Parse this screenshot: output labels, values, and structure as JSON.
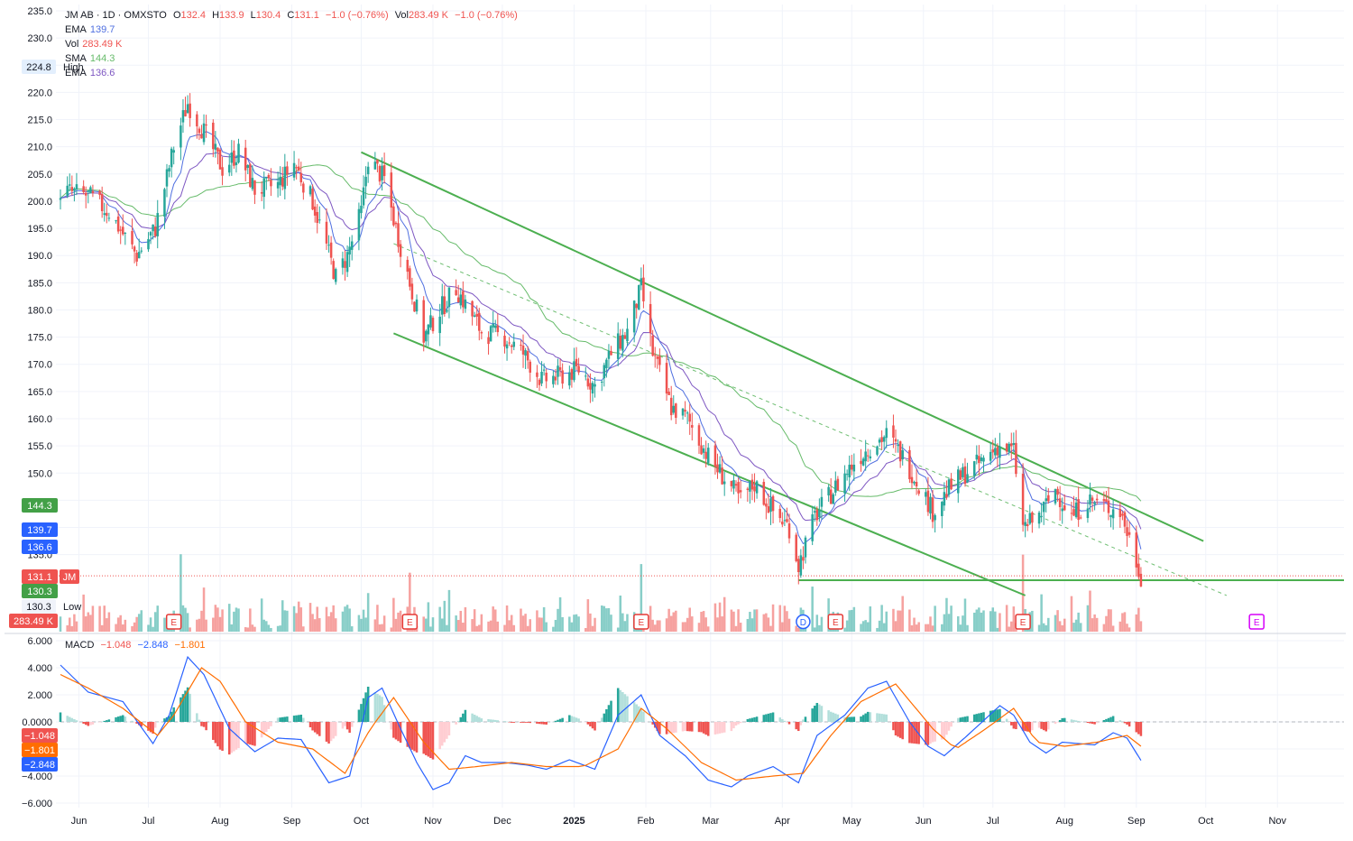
{
  "header": {
    "symbol": "JM AB · 1D · OMXSTO",
    "o_label": "O",
    "o_value": "132.4",
    "h_label": "H",
    "h_value": "133.9",
    "l_label": "L",
    "l_value": "130.4",
    "c_label": "C",
    "c_value": "131.1",
    "change": "−1.0 (−0.76%)",
    "vol_label": "Vol",
    "vol_value": "283.49 K",
    "vol_change": "−1.0 (−0.76%)"
  },
  "indicators": {
    "ema1_label": "EMA",
    "ema1_value": "139.7",
    "vol_label": "Vol",
    "vol_value": "283.49 K",
    "sma_label": "SMA",
    "sma_value": "144.3",
    "ema2_label": "EMA",
    "ema2_value": "136.6",
    "high_label": "High",
    "high_value": "224.8",
    "low_label": "Low",
    "low_value": "130.3"
  },
  "macd_legend": {
    "label": "MACD",
    "v1": "−1.048",
    "v2": "−2.848",
    "v3": "−1.801"
  },
  "badges": {
    "sma": "144.3",
    "ema1": "139.7",
    "ema2": "136.6",
    "price": "131.1",
    "ticker": "JM",
    "low": "130.3",
    "volume": "283.49 K",
    "macd_hist": "−1.048",
    "macd_signal": "−1.801",
    "macd_line": "−2.848"
  },
  "colors": {
    "up": "#26a69a",
    "down": "#ef5350",
    "channel": "#4caf50",
    "sma": "#66bb6a",
    "ema_fast": "#4f6fe0",
    "ema_slow": "#7e57c2",
    "macd": "#2962ff",
    "signal": "#ff6d00",
    "grid": "#f0f3fa",
    "earnings": "#e53935",
    "dividend": "#2962ff",
    "future_earnings": "#d500f9"
  },
  "chart_data": [
    {
      "type": "candlestick",
      "title": "JM AB · 1D · OMXSTO",
      "x": [
        "Jun",
        "Jul",
        "Aug",
        "Sep",
        "Oct",
        "Nov",
        "Dec",
        "2025",
        "Feb",
        "Mar",
        "Apr",
        "May",
        "Jun",
        "Jul",
        "Aug",
        "Sep",
        "Oct",
        "Nov"
      ],
      "y_ticks": [
        135,
        140,
        145,
        150,
        155,
        160,
        165,
        170,
        175,
        180,
        185,
        190,
        195,
        200,
        205,
        210,
        215,
        220,
        225,
        230,
        235
      ],
      "y_tick_labels": [
        "135.0",
        "",
        "",
        "150.0",
        "155.0",
        "160.0",
        "165.0",
        "170.0",
        "175.0",
        "180.0",
        "185.0",
        "190.0",
        "195.0",
        "200.0",
        "205.0",
        "210.0",
        "215.0",
        "220.0",
        "",
        "230.0",
        "235.0"
      ],
      "ylim": [
        127.5,
        235
      ],
      "grid": true,
      "scale": "linear",
      "price_path": [
        [
          "2024-05-24",
          202
        ],
        [
          "2024-06-05",
          201
        ],
        [
          "2024-06-14",
          198
        ],
        [
          "2024-06-26",
          190
        ],
        [
          "2024-07-04",
          195
        ],
        [
          "2024-07-12",
          210
        ],
        [
          "2024-07-18",
          218
        ],
        [
          "2024-07-26",
          212
        ],
        [
          "2024-08-02",
          206
        ],
        [
          "2024-08-09",
          209
        ],
        [
          "2024-08-16",
          202
        ],
        [
          "2024-08-26",
          203
        ],
        [
          "2024-09-02",
          207
        ],
        [
          "2024-09-10",
          200
        ],
        [
          "2024-09-20",
          186
        ],
        [
          "2024-09-25",
          190
        ],
        [
          "2024-10-01",
          198
        ],
        [
          "2024-10-04",
          208
        ],
        [
          "2024-10-11",
          204
        ],
        [
          "2024-10-16",
          195
        ],
        [
          "2024-10-22",
          185
        ],
        [
          "2024-10-28",
          175
        ],
        [
          "2024-11-04",
          180
        ],
        [
          "2024-11-11",
          184
        ],
        [
          "2024-11-15",
          181
        ],
        [
          "2024-11-22",
          176
        ],
        [
          "2024-12-02",
          175
        ],
        [
          "2024-12-10",
          172
        ],
        [
          "2024-12-18",
          167
        ],
        [
          "2024-12-27",
          168
        ],
        [
          "2025-01-03",
          169
        ],
        [
          "2025-01-10",
          166
        ],
        [
          "2025-01-17",
          172
        ],
        [
          "2025-01-24",
          176
        ],
        [
          "2025-01-30",
          184
        ],
        [
          "2025-02-04",
          172
        ],
        [
          "2025-02-12",
          162
        ],
        [
          "2025-02-19",
          160
        ],
        [
          "2025-02-28",
          153
        ],
        [
          "2025-03-07",
          149
        ],
        [
          "2025-03-14",
          145
        ],
        [
          "2025-03-20",
          148
        ],
        [
          "2025-03-28",
          143
        ],
        [
          "2025-04-04",
          140
        ],
        [
          "2025-04-08",
          133
        ],
        [
          "2025-04-15",
          142
        ],
        [
          "2025-04-25",
          148
        ],
        [
          "2025-05-02",
          152
        ],
        [
          "2025-05-09",
          155
        ],
        [
          "2025-05-16",
          157
        ],
        [
          "2025-05-23",
          153
        ],
        [
          "2025-05-30",
          148
        ],
        [
          "2025-06-05",
          143
        ],
        [
          "2025-06-12",
          147
        ],
        [
          "2025-06-19",
          150
        ],
        [
          "2025-06-26",
          152
        ],
        [
          "2025-07-03",
          155
        ],
        [
          "2025-07-10",
          154
        ],
        [
          "2025-07-14",
          140
        ],
        [
          "2025-07-21",
          142
        ],
        [
          "2025-07-28",
          147
        ],
        [
          "2025-08-04",
          142
        ],
        [
          "2025-08-11",
          145
        ],
        [
          "2025-08-18",
          144
        ],
        [
          "2025-08-25",
          143
        ],
        [
          "2025-08-29",
          138
        ],
        [
          "2025-09-03",
          131.1
        ]
      ],
      "channel_upper": [
        [
          "2024-10-01",
          209
        ],
        [
          "2025-09-30",
          137.5
        ]
      ],
      "channel_lower": [
        [
          "2024-10-15",
          175.7
        ],
        [
          "2025-07-15",
          127.5
        ]
      ],
      "channel_mid": [
        [
          "2024-10-15",
          192.2
        ],
        [
          "2025-10-10",
          127.5
        ]
      ],
      "support_level": 130.3,
      "last_price": 131.1,
      "sma_last": 144.3,
      "ema_fast_last": 139.7,
      "ema_slow_last": 136.6,
      "high": 224.8,
      "low": 130.3,
      "volume_last": "283.49 K",
      "volume_spikes": [
        "2024-07-15",
        "2024-10-22",
        "2025-01-30",
        "2025-07-14"
      ],
      "events": [
        {
          "date": "2024-07-12",
          "type": "E"
        },
        {
          "date": "2024-10-22",
          "type": "E"
        },
        {
          "date": "2025-01-30",
          "type": "E"
        },
        {
          "date": "2025-04-10",
          "type": "D"
        },
        {
          "date": "2025-04-24",
          "type": "E"
        },
        {
          "date": "2025-07-14",
          "type": "E"
        },
        {
          "date": "2025-10-23",
          "type": "E"
        }
      ]
    },
    {
      "type": "line",
      "title": "MACD",
      "series": [
        {
          "name": "MACD",
          "color": "#2962ff"
        },
        {
          "name": "Signal",
          "color": "#ff6d00"
        },
        {
          "name": "Histogram"
        }
      ],
      "y_ticks": [
        -6,
        -4,
        -2,
        0,
        2,
        4,
        6
      ],
      "y_tick_labels": [
        "−6.000",
        "−4.000",
        "−2.000",
        "0.0000",
        "2.000",
        "4.000",
        "6.000"
      ],
      "ylim": [
        -7,
        6
      ],
      "macd_path": [
        [
          "2024-05-24",
          4.2
        ],
        [
          "2024-06-05",
          2.2
        ],
        [
          "2024-06-20",
          1.5
        ],
        [
          "2024-07-03",
          -1.6
        ],
        [
          "2024-07-10",
          0.5
        ],
        [
          "2024-07-18",
          4.8
        ],
        [
          "2024-07-25",
          3.5
        ],
        [
          "2024-08-05",
          -0.5
        ],
        [
          "2024-08-16",
          -2.2
        ],
        [
          "2024-08-26",
          -1.2
        ],
        [
          "2024-09-05",
          -1.3
        ],
        [
          "2024-09-17",
          -4.5
        ],
        [
          "2024-09-26",
          -4.0
        ],
        [
          "2024-10-04",
          1.8
        ],
        [
          "2024-10-10",
          2.5
        ],
        [
          "2024-10-18",
          -0.5
        ],
        [
          "2024-10-25",
          -3.0
        ],
        [
          "2024-11-01",
          -5.0
        ],
        [
          "2024-11-08",
          -4.5
        ],
        [
          "2024-11-15",
          -2.5
        ],
        [
          "2024-11-22",
          -3.0
        ],
        [
          "2024-12-02",
          -3.0
        ],
        [
          "2024-12-12",
          -3.2
        ],
        [
          "2024-12-20",
          -3.5
        ],
        [
          "2024-12-30",
          -2.8
        ],
        [
          "2025-01-10",
          -3.5
        ],
        [
          "2025-01-20",
          0.5
        ],
        [
          "2025-01-30",
          2.0
        ],
        [
          "2025-02-07",
          -1.0
        ],
        [
          "2025-02-18",
          -2.5
        ],
        [
          "2025-02-28",
          -4.3
        ],
        [
          "2025-03-10",
          -4.8
        ],
        [
          "2025-03-17",
          -4.0
        ],
        [
          "2025-03-28",
          -3.3
        ],
        [
          "2025-04-08",
          -4.5
        ],
        [
          "2025-04-16",
          -1.0
        ],
        [
          "2025-04-28",
          0.5
        ],
        [
          "2025-05-08",
          2.5
        ],
        [
          "2025-05-16",
          3.0
        ],
        [
          "2025-05-26",
          0.0
        ],
        [
          "2025-06-03",
          -1.8
        ],
        [
          "2025-06-10",
          -2.5
        ],
        [
          "2025-06-20",
          -1.0
        ],
        [
          "2025-07-04",
          1.2
        ],
        [
          "2025-07-10",
          0.5
        ],
        [
          "2025-07-17",
          -1.5
        ],
        [
          "2025-07-24",
          -2.3
        ],
        [
          "2025-07-31",
          -1.5
        ],
        [
          "2025-08-07",
          -1.6
        ],
        [
          "2025-08-14",
          -1.7
        ],
        [
          "2025-08-22",
          -0.8
        ],
        [
          "2025-08-28",
          -1.2
        ],
        [
          "2025-09-03",
          -2.848
        ]
      ],
      "signal_path": [
        [
          "2024-05-24",
          3.5
        ],
        [
          "2024-06-05",
          2.5
        ],
        [
          "2024-06-20",
          1.0
        ],
        [
          "2024-07-05",
          -1.0
        ],
        [
          "2024-07-12",
          0.5
        ],
        [
          "2024-07-24",
          4.0
        ],
        [
          "2024-08-01",
          3.0
        ],
        [
          "2024-08-12",
          0.0
        ],
        [
          "2024-08-26",
          -1.5
        ],
        [
          "2024-09-10",
          -2.0
        ],
        [
          "2024-09-24",
          -3.8
        ],
        [
          "2024-10-05",
          -0.5
        ],
        [
          "2024-10-15",
          1.8
        ],
        [
          "2024-10-28",
          -1.5
        ],
        [
          "2024-11-08",
          -3.5
        ],
        [
          "2024-11-20",
          -3.3
        ],
        [
          "2024-12-05",
          -3.0
        ],
        [
          "2024-12-20",
          -3.3
        ],
        [
          "2025-01-05",
          -3.3
        ],
        [
          "2025-01-20",
          -2.0
        ],
        [
          "2025-01-30",
          1.0
        ],
        [
          "2025-02-10",
          -0.5
        ],
        [
          "2025-02-25",
          -3.0
        ],
        [
          "2025-03-12",
          -4.3
        ],
        [
          "2025-03-28",
          -4.0
        ],
        [
          "2025-04-10",
          -3.8
        ],
        [
          "2025-04-22",
          -1.0
        ],
        [
          "2025-05-05",
          1.5
        ],
        [
          "2025-05-20",
          2.8
        ],
        [
          "2025-06-05",
          -0.5
        ],
        [
          "2025-06-15",
          -2.0
        ],
        [
          "2025-06-28",
          -0.5
        ],
        [
          "2025-07-10",
          1.0
        ],
        [
          "2025-07-20",
          -1.5
        ],
        [
          "2025-08-01",
          -1.8
        ],
        [
          "2025-08-15",
          -1.5
        ],
        [
          "2025-08-28",
          -1.0
        ],
        [
          "2025-09-03",
          -1.801
        ]
      ],
      "histogram_last": -1.048
    }
  ]
}
